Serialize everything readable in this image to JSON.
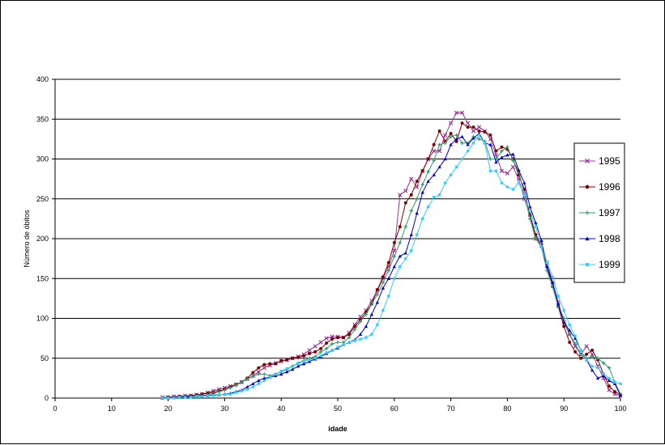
{
  "chart_data": {
    "type": "line",
    "xlabel": "idade",
    "ylabel": "Número de óbitos",
    "xlim": [
      0,
      100
    ],
    "ylim": [
      0,
      400
    ],
    "xticks": [
      0,
      10,
      20,
      30,
      40,
      50,
      60,
      70,
      80,
      90,
      100
    ],
    "yticks": [
      0,
      50,
      100,
      150,
      200,
      250,
      300,
      350,
      400
    ],
    "grid": "horizontal",
    "legend": "right",
    "x": [
      19,
      20,
      21,
      22,
      23,
      24,
      25,
      26,
      27,
      28,
      29,
      30,
      31,
      32,
      33,
      34,
      35,
      36,
      37,
      38,
      39,
      40,
      41,
      42,
      43,
      44,
      45,
      46,
      47,
      48,
      49,
      50,
      51,
      52,
      53,
      54,
      55,
      56,
      57,
      58,
      59,
      60,
      61,
      62,
      63,
      64,
      65,
      66,
      67,
      68,
      69,
      70,
      71,
      72,
      73,
      74,
      75,
      76,
      77,
      78,
      79,
      80,
      81,
      82,
      83,
      84,
      85,
      86,
      87,
      88,
      89,
      90,
      91,
      92,
      93,
      94,
      95,
      96,
      97,
      98,
      99,
      100
    ],
    "series": [
      {
        "name": "1995",
        "color": "#993399",
        "marker": "x",
        "values": [
          1,
          1,
          2,
          2,
          3,
          3,
          4,
          5,
          7,
          9,
          11,
          13,
          15,
          17,
          20,
          24,
          28,
          33,
          38,
          41,
          44,
          46,
          48,
          50,
          52,
          55,
          60,
          65,
          70,
          75,
          77,
          77,
          76,
          82,
          92,
          102,
          110,
          122,
          135,
          150,
          165,
          185,
          255,
          260,
          275,
          265,
          285,
          300,
          310,
          310,
          330,
          345,
          358,
          358,
          345,
          335,
          340,
          335,
          325,
          305,
          285,
          282,
          290,
          275,
          250,
          230,
          200,
          195,
          170,
          145,
          120,
          95,
          80,
          65,
          55,
          65,
          55,
          40,
          25,
          10,
          5,
          3
        ]
      },
      {
        "name": "1996",
        "color": "#800000",
        "marker": "circle",
        "values": [
          0,
          1,
          1,
          2,
          2,
          3,
          4,
          5,
          6,
          7,
          9,
          11,
          14,
          17,
          20,
          25,
          32,
          38,
          42,
          43,
          43,
          47,
          48,
          50,
          51,
          53,
          56,
          58,
          62,
          69,
          74,
          76,
          76,
          80,
          90,
          98,
          108,
          118,
          136,
          152,
          170,
          195,
          215,
          245,
          255,
          272,
          285,
          300,
          318,
          335,
          322,
          332,
          322,
          345,
          340,
          340,
          335,
          334,
          330,
          310,
          315,
          312,
          300,
          280,
          262,
          230,
          205,
          190,
          165,
          140,
          115,
          90,
          70,
          58,
          50,
          55,
          60,
          48,
          30,
          15,
          8,
          4
        ]
      },
      {
        "name": "1997",
        "color": "#339966",
        "marker": "plus",
        "values": [
          0,
          0,
          1,
          1,
          2,
          2,
          3,
          3,
          4,
          6,
          8,
          10,
          13,
          16,
          20,
          24,
          27,
          30,
          30,
          28,
          30,
          33,
          36,
          40,
          44,
          47,
          50,
          52,
          58,
          62,
          68,
          70,
          70,
          76,
          86,
          96,
          105,
          118,
          130,
          145,
          160,
          178,
          195,
          215,
          235,
          250,
          268,
          284,
          298,
          318,
          320,
          328,
          330,
          320,
          320,
          328,
          325,
          322,
          300,
          300,
          310,
          315,
          298,
          285,
          255,
          225,
          200,
          190,
          160,
          140,
          115,
          100,
          80,
          68,
          55,
          50,
          52,
          50,
          44,
          38,
          20,
          5
        ]
      },
      {
        "name": "1998",
        "color": "#0000CC",
        "marker": "triangle",
        "values": [
          0,
          0,
          1,
          1,
          2,
          2,
          2,
          3,
          3,
          4,
          4,
          5,
          6,
          8,
          10,
          14,
          18,
          22,
          25,
          26,
          28,
          30,
          33,
          36,
          40,
          43,
          46,
          49,
          52,
          56,
          60,
          63,
          67,
          70,
          73,
          80,
          90,
          105,
          120,
          138,
          150,
          165,
          178,
          182,
          205,
          232,
          258,
          272,
          280,
          290,
          300,
          318,
          325,
          328,
          318,
          326,
          332,
          320,
          318,
          296,
          302,
          305,
          306,
          286,
          270,
          240,
          220,
          198,
          165,
          145,
          118,
          95,
          85,
          75,
          60,
          48,
          35,
          25,
          28,
          22,
          18,
          3
        ]
      },
      {
        "name": "1999",
        "color": "#33CCFF",
        "marker": "square",
        "values": [
          0,
          0,
          0,
          1,
          1,
          1,
          2,
          2,
          3,
          3,
          4,
          5,
          5,
          7,
          9,
          11,
          14,
          18,
          22,
          26,
          30,
          34,
          37,
          40,
          43,
          46,
          48,
          50,
          53,
          57,
          60,
          64,
          67,
          70,
          72,
          74,
          76,
          80,
          92,
          110,
          128,
          150,
          165,
          175,
          185,
          205,
          225,
          240,
          252,
          255,
          270,
          280,
          290,
          300,
          310,
          320,
          330,
          320,
          285,
          285,
          270,
          265,
          262,
          270,
          255,
          235,
          215,
          190,
          170,
          152,
          128,
          110,
          92,
          78,
          60,
          48,
          40,
          38,
          30,
          25,
          20,
          18
        ]
      }
    ]
  }
}
